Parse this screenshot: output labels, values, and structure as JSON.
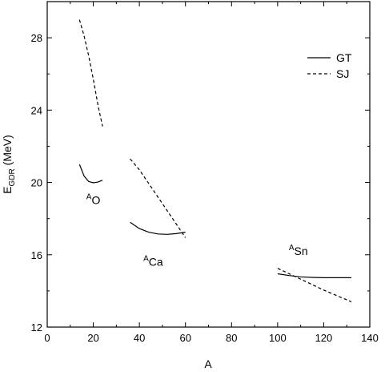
{
  "chart_data": {
    "type": "line",
    "xlabel": "A",
    "ylabel_main": "E",
    "ylabel_sub": "GDR",
    "ylabel_unit": " (MeV)",
    "xlim": [
      0,
      140
    ],
    "ylim": [
      12,
      30
    ],
    "x_ticks": [
      0,
      20,
      40,
      60,
      80,
      100,
      120,
      140
    ],
    "y_ticks": [
      12,
      16,
      20,
      24,
      28
    ],
    "grid": false,
    "legend_position": "top-right",
    "legend": [
      {
        "name": "GT",
        "style": "solid"
      },
      {
        "name": "SJ",
        "style": "dashed"
      }
    ],
    "series": [
      {
        "name": "GT",
        "style": "solid",
        "segments": [
          {
            "x": [
              14,
              16,
              18,
              20,
              22,
              24
            ],
            "y": [
              21.0,
              20.35,
              20.05,
              19.98,
              20.02,
              20.12
            ]
          },
          {
            "x": [
              36,
              40,
              44,
              48,
              52,
              56,
              60
            ],
            "y": [
              17.8,
              17.45,
              17.25,
              17.15,
              17.13,
              17.17,
              17.25
            ]
          },
          {
            "x": [
              100,
              105,
              110,
              115,
              120,
              125,
              132
            ],
            "y": [
              14.95,
              14.85,
              14.78,
              14.75,
              14.73,
              14.73,
              14.73
            ]
          }
        ]
      },
      {
        "name": "SJ",
        "style": "dashed",
        "segments": [
          {
            "x": [
              14,
              16,
              18,
              20,
              22,
              24
            ],
            "y": [
              29.0,
              28.1,
              27.0,
              25.7,
              24.3,
              23.1
            ]
          },
          {
            "x": [
              36,
              40,
              44,
              48,
              52,
              56,
              60
            ],
            "y": [
              21.3,
              20.7,
              19.95,
              19.2,
              18.45,
              17.7,
              16.95
            ]
          },
          {
            "x": [
              100,
              110,
              120,
              132
            ],
            "y": [
              15.25,
              14.65,
              14.05,
              13.4
            ]
          }
        ]
      }
    ],
    "annotations": [
      {
        "sup": "A",
        "text": "O",
        "x": 20,
        "y": 18.8
      },
      {
        "sup": "A",
        "text": "Ca",
        "x": 46,
        "y": 15.4
      },
      {
        "sup": "A",
        "text": "Sn",
        "x": 109,
        "y": 16.0
      }
    ]
  }
}
